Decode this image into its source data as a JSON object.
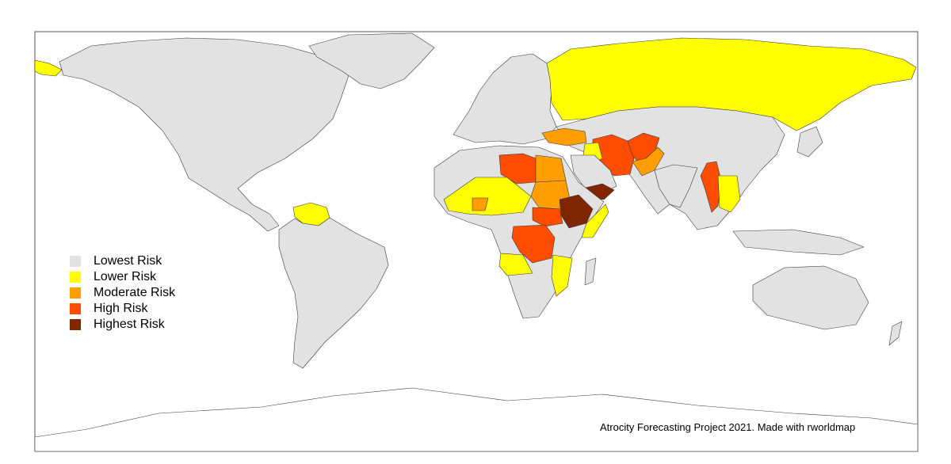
{
  "map": {
    "legend": [
      {
        "label": "Lowest Risk",
        "color": "#e2e2e2"
      },
      {
        "label": "Lower Risk",
        "color": "#ffff00"
      },
      {
        "label": "Moderate Risk",
        "color": "#ff9e00"
      },
      {
        "label": "High Risk",
        "color": "#ff4d00"
      },
      {
        "label": "Highest Risk",
        "color": "#7f2600"
      }
    ],
    "caption": "Atrocity Forecasting Project 2021. Made with rworldmap"
  }
}
